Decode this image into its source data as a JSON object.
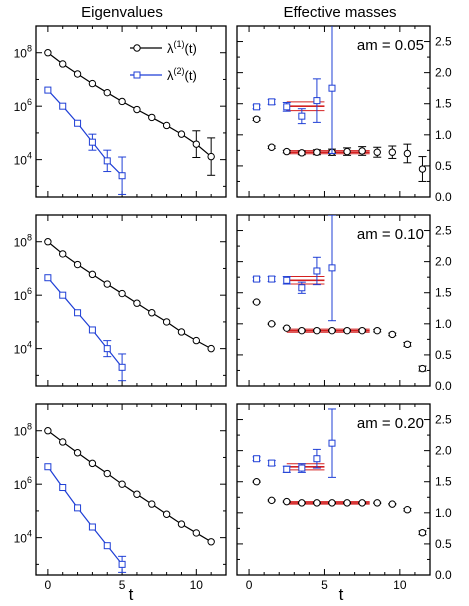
{
  "figure": {
    "col_titles": [
      "Eigenvalues",
      "Effective masses"
    ]
  },
  "colors": {
    "lambda1": "#000000",
    "lambda2": "#1f3fd6",
    "fit": "#d42020",
    "frame": "#000000"
  },
  "chart_data": [
    {
      "type": "scatter",
      "panel": "eigenvalues-am-0.05",
      "xlabel": "",
      "ylabel": "",
      "yscale": "log",
      "xlim": [
        -0.8,
        12
      ],
      "ylim": [
        400,
        1000000000.0
      ],
      "xticks": [
        0,
        5,
        10
      ],
      "yticks": [
        10000,
        1000000,
        100000000
      ],
      "ytick_labels": [
        {
          "base": "10",
          "exp": "4"
        },
        {
          "base": "10",
          "exp": "6"
        },
        {
          "base": "10",
          "exp": "8"
        }
      ],
      "legend": {
        "position": "top-right",
        "entries": [
          {
            "base": "λ",
            "sup": "(1)",
            "suffix": "(t)",
            "series": 0
          },
          {
            "base": "λ",
            "sup": "(2)",
            "suffix": "(t)",
            "series": 1
          }
        ]
      },
      "series": [
        {
          "name": "λ(1)(t)",
          "marker": "circle",
          "color": "#000000",
          "x": [
            0,
            1,
            2,
            3,
            4,
            5,
            6,
            7,
            8,
            9,
            10,
            11
          ],
          "y": [
            100000000.0,
            38000000.0,
            16000000.0,
            7000000.0,
            3200000.0,
            1500000.0,
            750000.0,
            380000.0,
            190000.0,
            90000.0,
            38000.0,
            13000.0
          ],
          "err": [
            0,
            0,
            0,
            0,
            0,
            0,
            0,
            0,
            0,
            0,
            0.5,
            0.7
          ]
        },
        {
          "name": "λ(2)(t)",
          "marker": "square",
          "color": "#1f3fd6",
          "x": [
            0,
            1,
            2,
            3,
            4,
            5
          ],
          "y": [
            4000000.0,
            1000000.0,
            230000.0,
            45000.0,
            9000.0,
            2500.0
          ],
          "err": [
            0,
            0,
            0,
            0.3,
            0.4,
            0.7
          ]
        }
      ]
    },
    {
      "type": "scatter",
      "panel": "effective-masses-am-0.05",
      "annotation": "am = 0.05",
      "xlim": [
        -0.8,
        12
      ],
      "ylim": [
        0,
        2.75
      ],
      "xticks": [
        0,
        5,
        10
      ],
      "yticks": [
        0.0,
        0.5,
        1.0,
        1.5,
        2.0,
        2.5
      ],
      "ytick_labels": [
        "0.0",
        "0.5",
        "1.0",
        "1.5",
        "2.0",
        "2.5"
      ],
      "series": [
        {
          "name": "λ(1)",
          "marker": "circle",
          "color": "#000000",
          "x": [
            0.5,
            1.5,
            2.5,
            3.5,
            4.5,
            5.5,
            6.5,
            7.5,
            8.5,
            9.5,
            10.5,
            11.5
          ],
          "y": [
            1.25,
            0.8,
            0.73,
            0.71,
            0.72,
            0.72,
            0.73,
            0.74,
            0.72,
            0.72,
            0.7,
            0.45
          ],
          "err": [
            0.02,
            0.02,
            0.02,
            0.03,
            0.04,
            0.05,
            0.06,
            0.07,
            0.08,
            0.1,
            0.15,
            0.2
          ]
        },
        {
          "name": "λ(2)",
          "marker": "square",
          "color": "#1f3fd6",
          "x": [
            0.5,
            1.5,
            2.5,
            3.5,
            4.5,
            5.5
          ],
          "y": [
            1.45,
            1.53,
            1.45,
            1.3,
            1.55,
            1.75
          ],
          "err": [
            0.03,
            0.04,
            0.07,
            0.12,
            0.35,
            1.05
          ]
        }
      ],
      "fits": [
        {
          "series": "λ(1)",
          "x_range": [
            2.5,
            8
          ],
          "value": 0.72,
          "band": 0.025
        },
        {
          "series": "λ(2)",
          "x_range": [
            2.5,
            5
          ],
          "value": 1.46,
          "band": 0.07
        }
      ]
    },
    {
      "type": "scatter",
      "panel": "eigenvalues-am-0.10",
      "yscale": "log",
      "xlim": [
        -0.8,
        12
      ],
      "ylim": [
        400,
        1000000000.0
      ],
      "xticks": [
        0,
        5,
        10
      ],
      "yticks": [
        10000,
        1000000,
        100000000
      ],
      "ytick_labels": [
        {
          "base": "10",
          "exp": "4"
        },
        {
          "base": "10",
          "exp": "6"
        },
        {
          "base": "10",
          "exp": "8"
        }
      ],
      "series": [
        {
          "name": "λ(1)(t)",
          "marker": "circle",
          "color": "#000000",
          "x": [
            0,
            1,
            2,
            3,
            4,
            5,
            6,
            7,
            8,
            9,
            10,
            11
          ],
          "y": [
            100000000.0,
            35000000.0,
            14000000.0,
            6000000.0,
            2600000.0,
            1150000.0,
            500000.0,
            220000.0,
            100000.0,
            42000.0,
            20000.0,
            10000.0
          ],
          "err": [
            0,
            0,
            0,
            0,
            0,
            0,
            0,
            0,
            0,
            0,
            0,
            0
          ]
        },
        {
          "name": "λ(2)(t)",
          "marker": "square",
          "color": "#1f3fd6",
          "x": [
            0,
            1,
            2,
            3,
            4,
            5
          ],
          "y": [
            4500000.0,
            1000000.0,
            220000.0,
            50000.0,
            10000.0,
            2000.0
          ],
          "err": [
            0,
            0,
            0,
            0,
            0.3,
            0.5
          ]
        }
      ]
    },
    {
      "type": "scatter",
      "panel": "effective-masses-am-0.10",
      "annotation": "am = 0.10",
      "xlim": [
        -0.8,
        12
      ],
      "ylim": [
        0,
        2.75
      ],
      "xticks": [
        0,
        5,
        10
      ],
      "yticks": [
        0.0,
        0.5,
        1.0,
        1.5,
        2.0,
        2.5
      ],
      "ytick_labels": [
        "0.0",
        "0.5",
        "1.0",
        "1.5",
        "2.0",
        "2.5"
      ],
      "series": [
        {
          "name": "λ(1)",
          "marker": "circle",
          "color": "#000000",
          "x": [
            0.5,
            1.5,
            2.5,
            3.5,
            4.5,
            5.5,
            6.5,
            7.5,
            8.5,
            9.5,
            10.5,
            11.5
          ],
          "y": [
            1.35,
            1.0,
            0.93,
            0.89,
            0.89,
            0.89,
            0.89,
            0.89,
            0.89,
            0.83,
            0.67,
            0.28
          ],
          "err": [
            0.01,
            0.01,
            0.01,
            0.01,
            0.01,
            0.01,
            0.01,
            0.02,
            0.02,
            0.02,
            0.03,
            0.04
          ]
        },
        {
          "name": "λ(2)",
          "marker": "square",
          "color": "#1f3fd6",
          "x": [
            0.5,
            1.5,
            2.5,
            3.5,
            4.5,
            5.5
          ],
          "y": [
            1.72,
            1.72,
            1.7,
            1.58,
            1.85,
            1.9
          ],
          "err": [
            0.03,
            0.04,
            0.06,
            0.09,
            0.22,
            0.85
          ]
        }
      ],
      "fits": [
        {
          "series": "λ(1)",
          "x_range": [
            2.5,
            8
          ],
          "value": 0.89,
          "band": 0.025
        },
        {
          "series": "λ(2)",
          "x_range": [
            2.5,
            5
          ],
          "value": 1.7,
          "band": 0.06
        }
      ]
    },
    {
      "type": "scatter",
      "panel": "eigenvalues-am-0.20",
      "yscale": "log",
      "xlim": [
        -0.8,
        12
      ],
      "ylim": [
        400,
        1000000000.0
      ],
      "xticks": [
        0,
        5,
        10
      ],
      "yticks": [
        10000,
        1000000,
        100000000
      ],
      "ytick_labels": [
        {
          "base": "10",
          "exp": "4"
        },
        {
          "base": "10",
          "exp": "6"
        },
        {
          "base": "10",
          "exp": "8"
        }
      ],
      "series": [
        {
          "name": "λ(1)(t)",
          "marker": "circle",
          "color": "#000000",
          "x": [
            0,
            1,
            2,
            3,
            4,
            5,
            6,
            7,
            8,
            9,
            10,
            11
          ],
          "y": [
            100000000.0,
            38000000.0,
            15000000.0,
            6000000.0,
            2500000.0,
            1000000.0,
            420000.0,
            180000.0,
            75000.0,
            32000.0,
            15000.0,
            7000.0
          ],
          "err": [
            0,
            0,
            0,
            0,
            0,
            0,
            0,
            0,
            0,
            0,
            0,
            0
          ]
        },
        {
          "name": "λ(2)(t)",
          "marker": "square",
          "color": "#1f3fd6",
          "x": [
            0,
            1,
            2,
            3,
            4,
            5
          ],
          "y": [
            4500000.0,
            750000.0,
            130000.0,
            25000.0,
            5000.0,
            1000.0
          ],
          "err": [
            0,
            0,
            0,
            0,
            0,
            0.3
          ]
        }
      ]
    },
    {
      "type": "scatter",
      "panel": "effective-masses-am-0.20",
      "annotation": "am = 0.20",
      "xlim": [
        -0.8,
        12
      ],
      "ylim": [
        0,
        2.75
      ],
      "xticks": [
        0,
        5,
        10
      ],
      "yticks": [
        0.0,
        0.5,
        1.0,
        1.5,
        2.0,
        2.5
      ],
      "ytick_labels": [
        "0.0",
        "0.5",
        "1.0",
        "1.5",
        "2.0",
        "2.5"
      ],
      "series": [
        {
          "name": "λ(1)",
          "marker": "circle",
          "color": "#000000",
          "x": [
            0.5,
            1.5,
            2.5,
            3.5,
            4.5,
            5.5,
            6.5,
            7.5,
            8.5,
            9.5,
            10.5,
            11.5
          ],
          "y": [
            1.5,
            1.2,
            1.18,
            1.16,
            1.16,
            1.16,
            1.16,
            1.16,
            1.16,
            1.14,
            1.05,
            0.68
          ],
          "err": [
            0.01,
            0.01,
            0.01,
            0.01,
            0.01,
            0.01,
            0.01,
            0.01,
            0.01,
            0.01,
            0.02,
            0.03
          ]
        },
        {
          "name": "λ(2)",
          "marker": "square",
          "color": "#1f3fd6",
          "x": [
            0.5,
            1.5,
            2.5,
            3.5,
            4.5,
            5.5
          ],
          "y": [
            1.87,
            1.8,
            1.7,
            1.72,
            1.87,
            2.12
          ],
          "err": [
            0.03,
            0.04,
            0.05,
            0.07,
            0.15,
            0.55
          ]
        }
      ],
      "fits": [
        {
          "series": "λ(1)",
          "x_range": [
            2.5,
            8
          ],
          "value": 1.16,
          "band": 0.02
        },
        {
          "series": "λ(2)",
          "x_range": [
            2.5,
            5
          ],
          "value": 1.74,
          "band": 0.05
        }
      ]
    }
  ],
  "x_axis_label": "t"
}
